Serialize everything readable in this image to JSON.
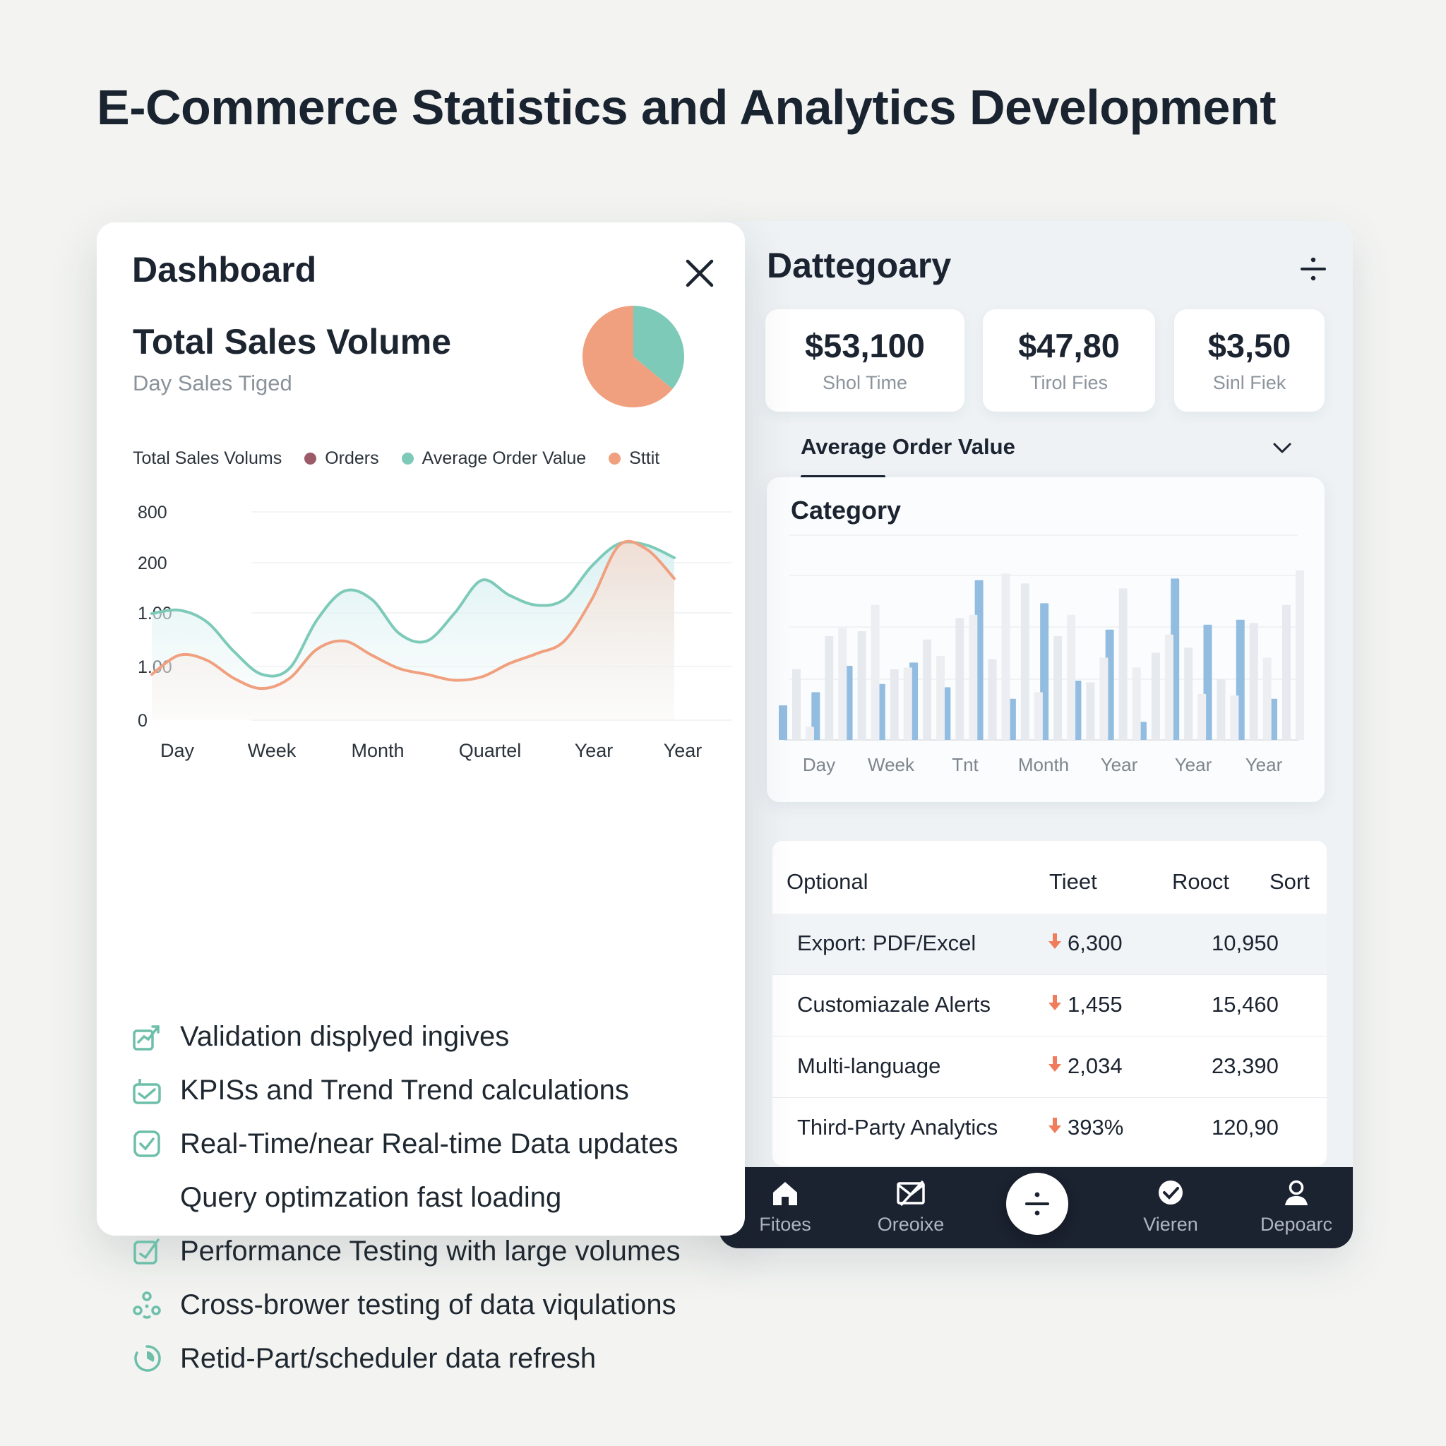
{
  "page": {
    "title": "E-Commerce  Statistics  and Analytics Development"
  },
  "dashboard": {
    "title": "Dashboard",
    "sales_title": "Total Sales Volume",
    "sales_subtitle": "Day Sales Tiged",
    "pie": {
      "slices": [
        {
          "color": "#f0a07e",
          "value": 0.64
        },
        {
          "color": "#7ecab9",
          "value": 0.36
        }
      ]
    },
    "legend": {
      "label": "Total Sales Volums",
      "items": [
        {
          "label": "Orders",
          "color": "#9a5a68"
        },
        {
          "label": "Average Order Value",
          "color": "#7ecab9"
        },
        {
          "label": "Sttit",
          "color": "#f0a07e"
        }
      ]
    },
    "features": [
      {
        "label": "Validation displyed ingives",
        "icon": "trend-check-icon"
      },
      {
        "label": "KPISs and Trend Trend calculations",
        "icon": "kpi-box-icon"
      },
      {
        "label": "Real-Time/near Real-time Data updates",
        "icon": "checkbox-icon"
      },
      {
        "label": "Query optimzation fast loading",
        "icon": ""
      },
      {
        "label": "Performance Testing with large volumes",
        "icon": "edit-box-icon"
      },
      {
        "label": "Cross-brower testing of data viqulations",
        "icon": "network-icon"
      },
      {
        "label": "Retid-Part/scheduler data refresh",
        "icon": "refresh-icon"
      }
    ]
  },
  "chart_data": [
    {
      "type": "area",
      "ytick_labels": [
        "800",
        "200",
        "1.00",
        "1.00",
        "0"
      ],
      "xtick_labels": [
        "Day",
        "Week",
        "Month",
        "Quartel",
        "Year",
        "Year"
      ],
      "grid": true,
      "series": [
        {
          "color": "#7ecab9",
          "values": [
            128,
            132,
            118,
            82,
            55,
            62,
            120,
            155,
            145,
            104,
            95,
            128,
            168,
            150,
            138,
            145,
            185,
            212,
            210,
            195
          ]
        },
        {
          "color": "#f0a07e",
          "values": [
            55,
            78,
            72,
            50,
            38,
            50,
            85,
            95,
            78,
            62,
            55,
            48,
            52,
            68,
            80,
            95,
            145,
            210,
            205,
            170
          ]
        }
      ]
    },
    {
      "type": "bar",
      "title": "Category",
      "xtick_labels": [
        "Day",
        "Week",
        "Tnt",
        "Month",
        "Year",
        "Year",
        "Year"
      ],
      "ylim": [
        0,
        100
      ],
      "series": [
        {
          "color": "#92bde0",
          "values": [
            21,
            29,
            45,
            34,
            47,
            32,
            97,
            25,
            83,
            36,
            67,
            11,
            98,
            70,
            73,
            25
          ]
        },
        {
          "color": "#e6e9ee",
          "values": [
            43,
            63,
            66,
            43,
            61,
            74,
            49,
            95,
            63,
            35,
            92,
            53,
            56,
            37,
            71,
            82
          ]
        },
        {
          "color": "#eceef2",
          "values": [
            8,
            68,
            82,
            44,
            51,
            76,
            101,
            29,
            76,
            50,
            44,
            64,
            28,
            27,
            50,
            103
          ]
        }
      ]
    }
  ],
  "right": {
    "title": "Dattegoary",
    "stats": [
      {
        "value": "$53,100",
        "label": "Shol Time"
      },
      {
        "value": "$47,80",
        "label": "Tirol Fies"
      },
      {
        "value": "$3,50",
        "label": "Sinl Fiek"
      }
    ],
    "tab_label": "Average Order Value",
    "table": {
      "headers": [
        "Optional",
        "Tieet",
        "Rooct",
        "Sort"
      ],
      "rows": [
        {
          "name": "Export: PDF/Excel",
          "delta": "6,300",
          "total": "10,950"
        },
        {
          "name": "Customiazale Alerts",
          "delta": "1,455",
          "total": "15,460"
        },
        {
          "name": "Multi-language",
          "delta": "2,034",
          "total": "23,390"
        },
        {
          "name": "Third-Party Analytics",
          "delta": "393%",
          "total": "120,90"
        }
      ],
      "delta_icon": "arrow-down-icon",
      "delta_color": "#ef7d5c"
    },
    "nav": {
      "items": [
        {
          "label": "Fitoes",
          "icon": "home-icon"
        },
        {
          "label": "Oreoixe",
          "icon": "mail-slash-icon"
        },
        {
          "label": "Vieren",
          "icon": "check-badge-icon"
        },
        {
          "label": "Depoarc",
          "icon": "user-icon"
        }
      ],
      "fab_icon": "divide-icon"
    }
  },
  "colors": {
    "teal": "#7ecab9",
    "salmon": "#f0a07e",
    "bar_blue": "#92bde0",
    "nav_bg": "#1b2230"
  }
}
